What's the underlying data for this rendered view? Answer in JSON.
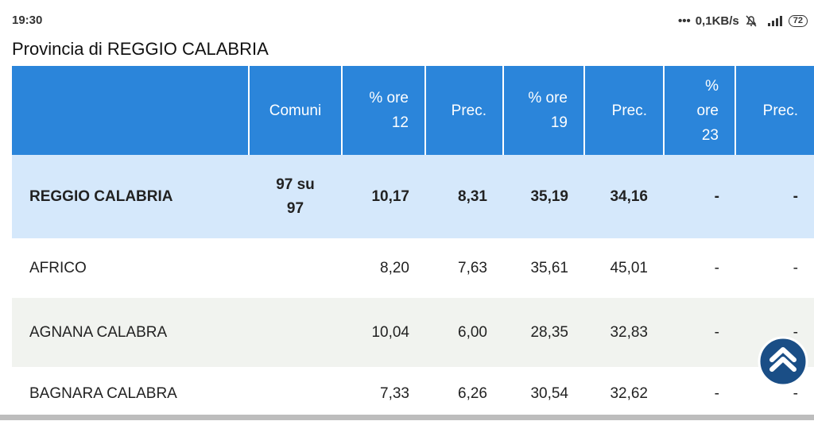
{
  "status": {
    "time": "19:30",
    "network": "0,1KB/s",
    "battery": "72"
  },
  "title": "Provincia di REGGIO CALABRIA",
  "table": {
    "header": [
      "",
      "Comuni",
      "% ore 12",
      "Prec.",
      "% ore 19",
      "Prec.",
      "% ore 23",
      "Prec."
    ],
    "rows": [
      [
        "REGGIO CALABRIA",
        "97 su 97",
        "10,17",
        "8,31",
        "35,19",
        "34,16",
        "-",
        "-"
      ],
      [
        "AFRICO",
        "",
        "8,20",
        "7,63",
        "35,61",
        "45,01",
        "-",
        "-"
      ],
      [
        "AGNANA CALABRA",
        "",
        "10,04",
        "6,00",
        "28,35",
        "32,83",
        "-",
        "-"
      ],
      [
        "BAGNARA CALABRA",
        "",
        "7,33",
        "6,26",
        "30,54",
        "32,62",
        "-",
        "-"
      ]
    ]
  }
}
